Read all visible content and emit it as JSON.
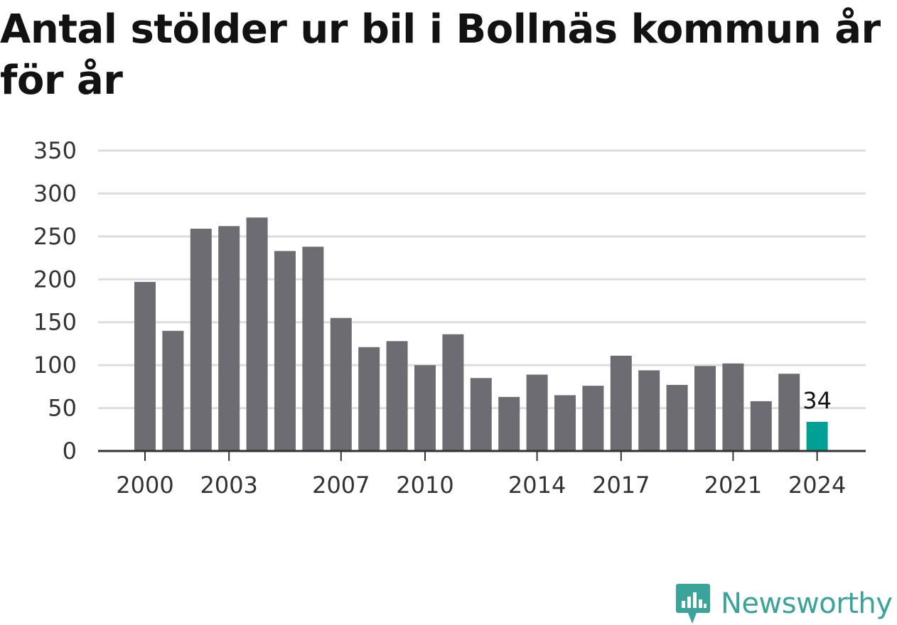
{
  "chart_data": {
    "type": "bar",
    "title": "Antal stölder ur bil i Bollnäs kommun år för år",
    "years": [
      2000,
      2001,
      2002,
      2003,
      2004,
      2005,
      2006,
      2007,
      2008,
      2009,
      2010,
      2011,
      2012,
      2013,
      2014,
      2015,
      2016,
      2017,
      2018,
      2019,
      2020,
      2021,
      2022,
      2023,
      2024
    ],
    "values": [
      197,
      140,
      259,
      262,
      272,
      233,
      238,
      155,
      121,
      128,
      100,
      136,
      85,
      63,
      89,
      65,
      76,
      111,
      94,
      77,
      99,
      102,
      58,
      90,
      34
    ],
    "x_tick_labels": [
      "2000",
      "2003",
      "2007",
      "2010",
      "2014",
      "2017",
      "2021",
      "2024"
    ],
    "y_ticks": [
      0,
      50,
      100,
      150,
      200,
      250,
      300,
      350
    ],
    "ylim": [
      0,
      350
    ],
    "xlabel": "",
    "ylabel": "",
    "highlight": {
      "year": 2024,
      "label": "34"
    },
    "grid": true,
    "colors": {
      "bar": "#6d6c72",
      "highlight": "#00a094",
      "grid": "#dddddd",
      "axis": "#333333"
    }
  },
  "footer": {
    "brand": "Newsworthy",
    "logo_icon": "bar-chart-speech-bubble-icon",
    "brand_color": "#3aa39a"
  }
}
